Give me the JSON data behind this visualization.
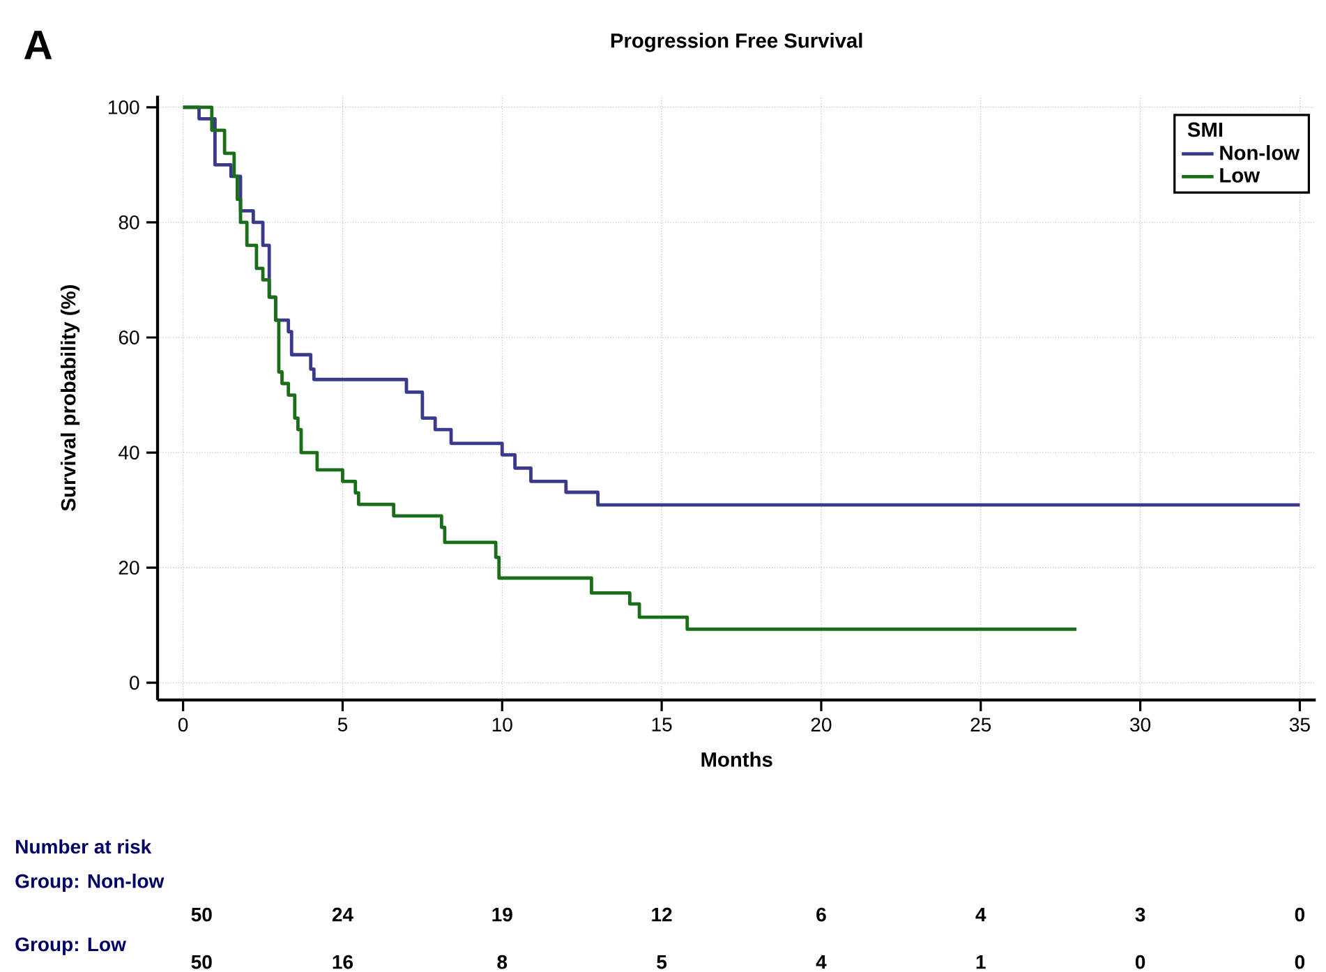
{
  "chart_data": {
    "type": "step",
    "title": "Progression Free Survival",
    "xlabel": "Months",
    "ylabel": "Survival probability (%)",
    "legend_title": "SMI",
    "series": [
      {
        "name": "Non-low",
        "color": "#3a3a8c",
        "x": [
          0,
          0.5,
          1,
          1.5,
          1.8,
          2.2,
          2.5,
          2.7,
          2.9,
          3.3,
          3.4,
          4,
          4.1,
          7,
          7.5,
          7.9,
          8.4,
          10,
          10.4,
          10.9,
          12,
          13,
          35
        ],
        "values": [
          100,
          98,
          90,
          88,
          82,
          80,
          76,
          67,
          63,
          61,
          57,
          54.5,
          52.7,
          50.5,
          46,
          44,
          41.6,
          39.6,
          37.3,
          35,
          33.1,
          30.9,
          30.9
        ]
      },
      {
        "name": "Low",
        "color": "#1a6e1a",
        "x": [
          0,
          0.9,
          1.3,
          1.6,
          1.7,
          1.8,
          2,
          2.3,
          2.5,
          2.7,
          2.9,
          3,
          3.1,
          3.3,
          3.5,
          3.6,
          3.7,
          4.2,
          5,
          5.4,
          5.5,
          6.6,
          8.1,
          8.2,
          9.8,
          9.9,
          12.8,
          14,
          14.3,
          15.8,
          28
        ],
        "values": [
          100,
          96,
          92,
          88,
          84,
          80,
          76,
          72,
          70,
          67,
          63,
          54,
          52,
          50,
          46,
          44,
          40,
          37,
          35,
          33,
          31,
          29,
          27,
          24.4,
          21.8,
          18.2,
          15.6,
          13.7,
          11.4,
          9.3,
          9.3
        ]
      }
    ],
    "xlim": [
      -0.8,
      35.5
    ],
    "ylim": [
      -3,
      102
    ],
    "xticks": [
      0,
      5,
      10,
      15,
      20,
      25,
      30,
      35
    ],
    "yticks": [
      0,
      20,
      40,
      60,
      80,
      100
    ],
    "grid": true,
    "legend": "top right",
    "line_style": "solid",
    "annotations": [
      "A",
      "Number at risk",
      "Group: Non-low",
      "50",
      "24",
      "19",
      "12",
      "6",
      "4",
      "3",
      "0",
      "Group: Low",
      "50",
      "16",
      "8",
      "5",
      "4",
      "1",
      "0",
      "0"
    ]
  }
}
